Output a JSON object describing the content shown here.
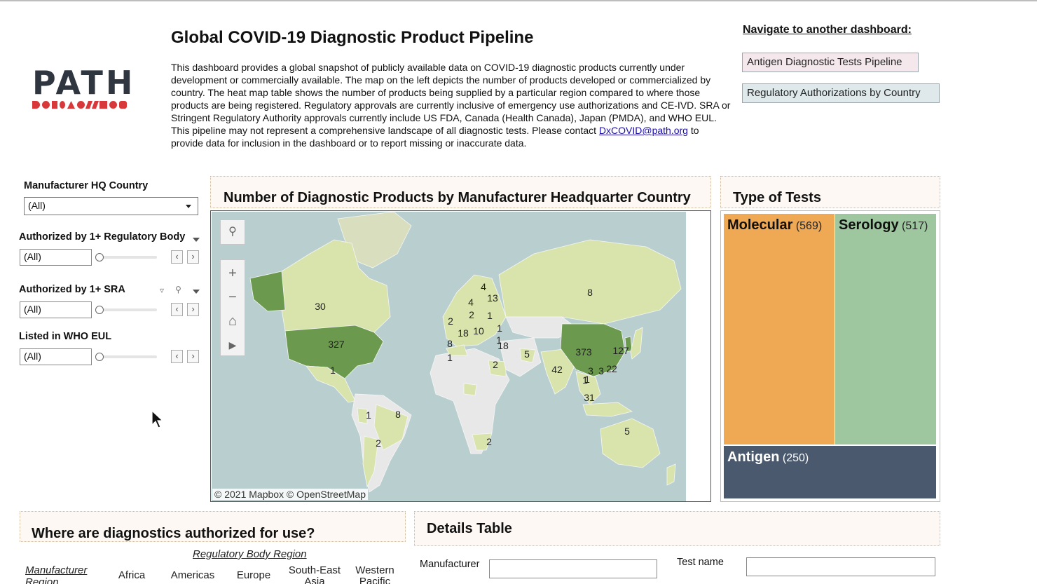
{
  "header": {
    "logo_text": "PATH",
    "title": "Global COVID-19 Diagnostic Product Pipeline",
    "desc_before": "This dashboard provides a global snapshot of publicly available data on COVID-19 diagnostic products currently under development or commercially available. The map on the left depicts the number of products developed or commercialized by country. The heat map table shows the number of products being supplied by a particular region compared to where those products are being registered. Regulatory approvals are currently inclusive of emergency use authorizations and CE-IVD. SRA or Stringent Regulatory Authority approvals currently include US FDA, Canada (Health Canada), Japan (PMDA), and WHO EUL. This pipeline may not represent a comprehensive landscape of all diagnostic tests. Please contact ",
    "desc_link": "DxCOVID@path.org",
    "desc_after": " to provide data for inclusion in the dashboard or to report missing or inaccurate data."
  },
  "nav": {
    "title": "Navigate to another dashboard:",
    "buttons": [
      "Antigen Diagnostic Tests Pipeline",
      "Regulatory Authorizations by Country"
    ]
  },
  "filters": {
    "hq_label": "Manufacturer HQ Country",
    "hq_value": "(All)",
    "reg_label": "Authorized by 1+ Regulatory Body",
    "reg_value": "(All)",
    "sra_label": "Authorized by 1+ SRA",
    "sra_value": "(All)",
    "eul_label": "Listed in WHO EUL",
    "eul_value": "(All)"
  },
  "map": {
    "title": "Number of Diagnostic Products by Manufacturer Headquarter Country",
    "credit": "© 2021 Mapbox © OpenStreetMap",
    "labels": [
      "30",
      "327",
      "1",
      "1",
      "8",
      "2",
      "2",
      "8",
      "4",
      "4",
      "13",
      "2",
      "1",
      "2",
      "18",
      "10",
      "1",
      "1",
      "8",
      "1",
      "18",
      "5",
      "2",
      "373",
      "127",
      "42",
      "1",
      "3",
      "3",
      "22",
      "31",
      "1",
      "5"
    ]
  },
  "type_of_tests": {
    "title": "Type of Tests",
    "items": [
      {
        "name": "Molecular",
        "count": "(569)"
      },
      {
        "name": "Serology",
        "count": "(517)"
      },
      {
        "name": "Antigen",
        "count": "(250)"
      }
    ],
    "colors": {
      "molecular": "#efa955",
      "serology": "#9ec79f",
      "antigen": "#4a596e"
    }
  },
  "where": {
    "title": "Where are diagnostics authorized for use?",
    "regulatory_body_region": "Regulatory Body Region",
    "manufacturer_region": "Manufacturer Region",
    "columns": [
      "Africa",
      "Americas",
      "Europe",
      "South-East Asia",
      "Western Pacific"
    ]
  },
  "details": {
    "title": "Details Table",
    "manufacturer_label": "Manufacturer",
    "test_name_label": "Test name"
  }
}
